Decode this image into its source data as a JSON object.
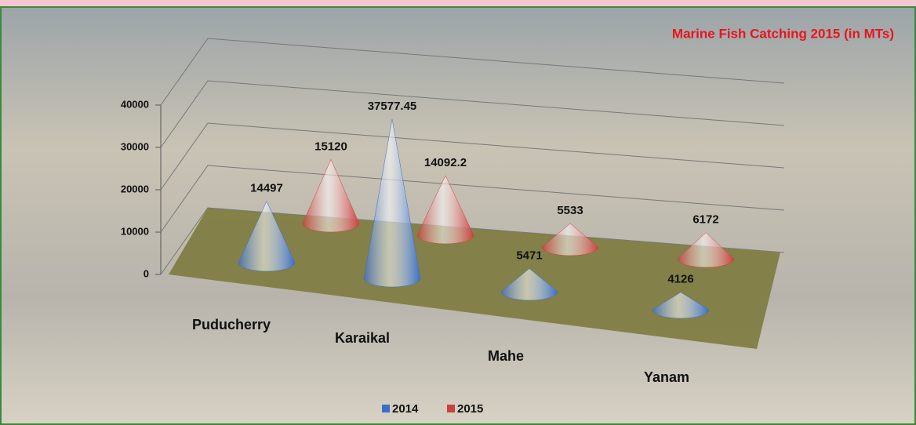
{
  "chart_data": {
    "type": "cone3d",
    "title": "Marine Fish Catching 2015 (in MTs)",
    "categories": [
      "Puducherry",
      "Karaikal",
      "Mahe",
      "Yanam"
    ],
    "series": [
      {
        "name": "2014",
        "color": "#3b6fc4",
        "values": [
          14497,
          37577.45,
          5471,
          4126
        ]
      },
      {
        "name": "2015",
        "color": "#c9403c",
        "values": [
          15120,
          14092.2,
          5533,
          6172
        ]
      }
    ],
    "ylim": [
      0,
      40000
    ],
    "yticks": [
      0,
      10000,
      20000,
      30000,
      40000
    ],
    "grid": true,
    "legend": "bottom"
  }
}
